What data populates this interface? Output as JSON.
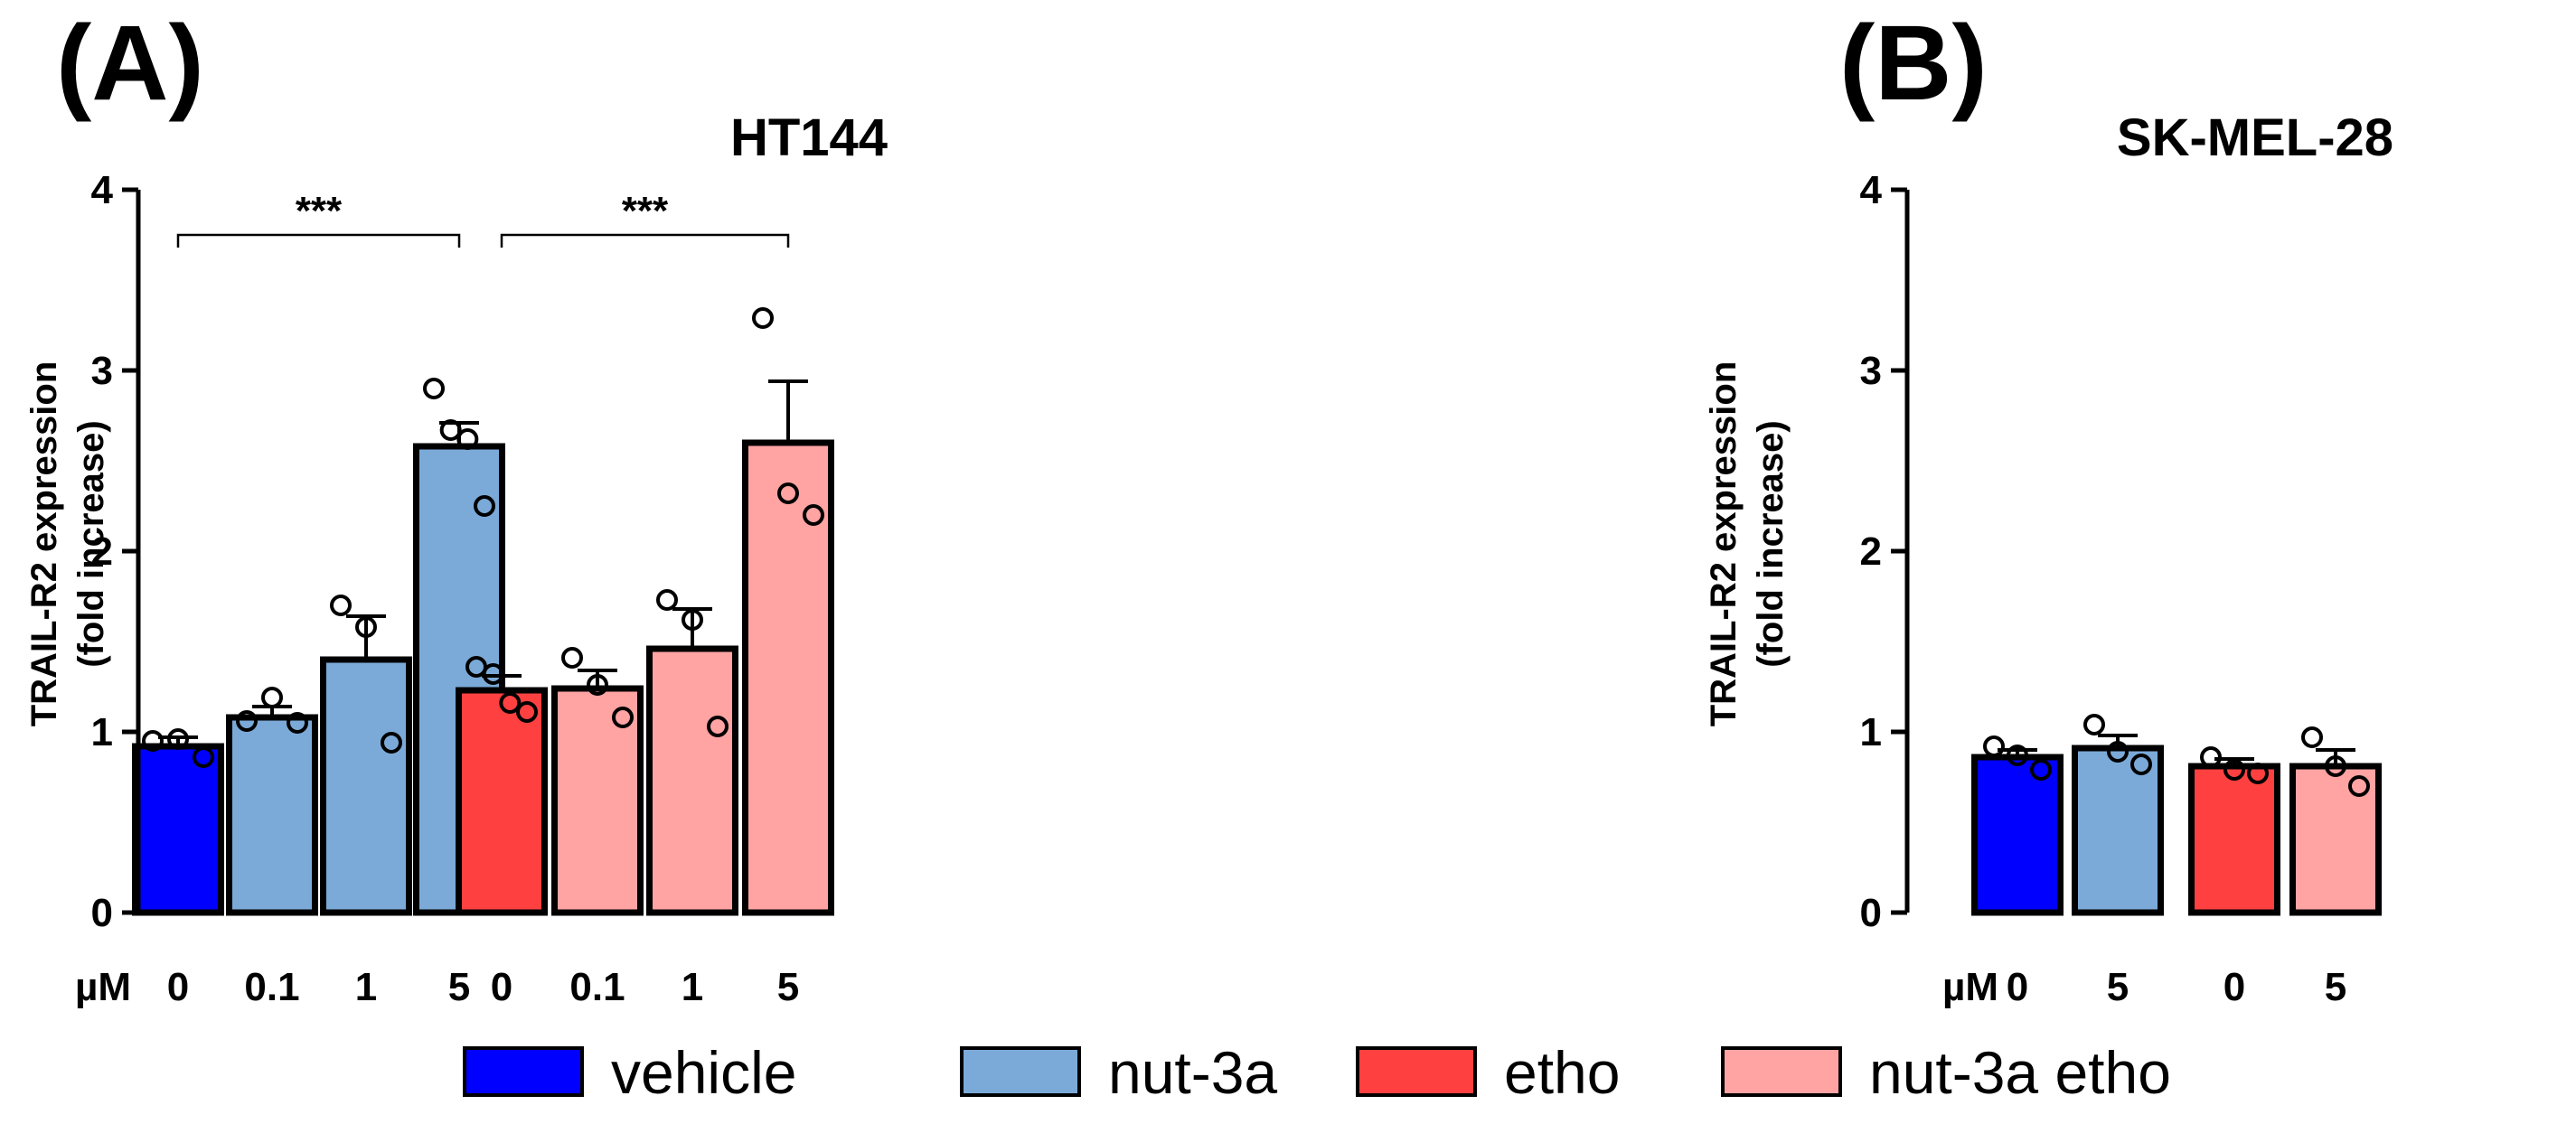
{
  "legend": [
    {
      "name": "vehicle",
      "color": "#0000FF"
    },
    {
      "name": "nut-3a",
      "color": "#7BAAD8"
    },
    {
      "name": "etho",
      "color": "#FF4040"
    },
    {
      "name": "nut-3a etho",
      "color": "#FFA3A3"
    }
  ],
  "chart_data": [
    {
      "type": "bar",
      "panel_label": "(A)",
      "title": "HT144",
      "ylabel_line1": "TRAIL-R2 expression",
      "ylabel_line2": "(fold increase)",
      "xunit": "µM",
      "ylim": [
        0,
        4
      ],
      "yticks": [
        "0",
        "1",
        "2",
        "3",
        "4"
      ],
      "bars": [
        {
          "group": "vehicle",
          "dose": "0",
          "value": 0.92,
          "sem": 0.05,
          "points": [
            0.95,
            0.96,
            0.86
          ],
          "color": "#0000FF"
        },
        {
          "group": "nut-3a",
          "dose": "0.1",
          "value": 1.08,
          "sem": 0.06,
          "points": [
            1.06,
            1.19,
            1.05
          ],
          "color": "#7BAAD8"
        },
        {
          "group": "nut-3a",
          "dose": "1",
          "value": 1.4,
          "sem": 0.24,
          "points": [
            1.7,
            1.58,
            0.94
          ],
          "color": "#7BAAD8"
        },
        {
          "group": "nut-3a",
          "dose": "5",
          "value": 2.58,
          "sem": 0.13,
          "points": [
            2.9,
            2.67,
            2.62,
            2.25
          ],
          "color": "#7BAAD8"
        },
        {
          "group": "etho",
          "dose": "0",
          "value": 1.23,
          "sem": 0.08,
          "points": [
            1.36,
            1.32,
            1.16,
            1.11
          ],
          "color": "#FF4040"
        },
        {
          "group": "nut-3a etho",
          "dose": "0.1",
          "value": 1.24,
          "sem": 0.1,
          "points": [
            1.41,
            1.26,
            1.08
          ],
          "color": "#FFA3A3"
        },
        {
          "group": "nut-3a etho",
          "dose": "1",
          "value": 1.46,
          "sem": 0.22,
          "points": [
            1.73,
            1.62,
            1.03
          ],
          "color": "#FFA3A3"
        },
        {
          "group": "nut-3a etho",
          "dose": "5",
          "value": 2.6,
          "sem": 0.34,
          "points": [
            3.29,
            2.32,
            2.2
          ],
          "color": "#FFA3A3"
        }
      ],
      "significance": [
        {
          "from": 0,
          "to": 3,
          "label": "***"
        },
        {
          "from": 4,
          "to": 7,
          "label": "***"
        }
      ]
    },
    {
      "type": "bar",
      "panel_label": "(B)",
      "title": "SK-MEL-28",
      "ylabel_line1": "TRAIL-R2 expression",
      "ylabel_line2": "(fold increase)",
      "xunit": "µM",
      "ylim": [
        0,
        4
      ],
      "yticks": [
        "0",
        "1",
        "2",
        "3",
        "4"
      ],
      "bars": [
        {
          "group": "vehicle",
          "dose": "0",
          "value": 0.86,
          "sem": 0.04,
          "points": [
            0.92,
            0.87,
            0.79
          ],
          "color": "#0000FF"
        },
        {
          "group": "nut-3a",
          "dose": "5",
          "value": 0.91,
          "sem": 0.07,
          "points": [
            1.04,
            0.89,
            0.82
          ],
          "color": "#7BAAD8"
        },
        {
          "group": "etho",
          "dose": "0",
          "value": 0.81,
          "sem": 0.04,
          "points": [
            0.86,
            0.79,
            0.77
          ],
          "color": "#FF4040"
        },
        {
          "group": "nut-3a etho",
          "dose": "5",
          "value": 0.81,
          "sem": 0.09,
          "points": [
            0.97,
            0.81,
            0.7
          ],
          "color": "#FFA3A3"
        }
      ],
      "significance": []
    }
  ]
}
